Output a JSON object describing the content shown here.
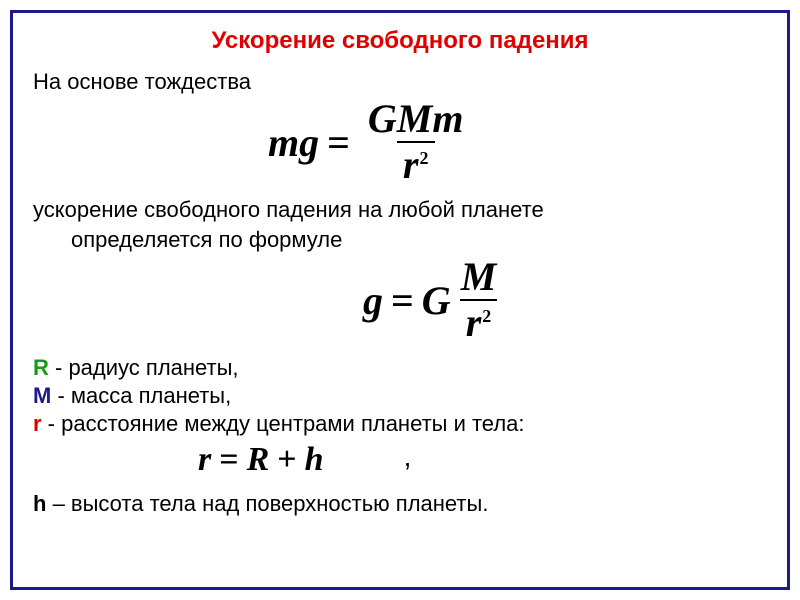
{
  "title": "Ускорение свободного падения",
  "intro_line": "На основе тождества",
  "body_line_1": "ускорение свободного падения  на любой планете",
  "body_line_2": "определяется по формуле",
  "vars": {
    "R": {
      "sym": "R",
      "desc": "  -  радиус планеты,"
    },
    "M": {
      "sym": "M",
      "desc": "  -  масса планеты,"
    },
    "r": {
      "sym": "r",
      "desc": "  -  расстояние между центрами планеты и тела:"
    },
    "h": {
      "sym": "h",
      "desc": " – высота тела над поверхностью планеты."
    }
  },
  "formulas": {
    "f1": {
      "lhs": "mg",
      "num": "GMm",
      "den_base": "r",
      "den_exp": "2"
    },
    "f2": {
      "lhs": "g",
      "coef": "G",
      "num": "M",
      "den_base": "r",
      "den_exp": "2"
    },
    "f3": {
      "lhs": "r",
      "a": "R",
      "op": "+",
      "b": "h"
    }
  },
  "style": {
    "border_color": "#1a1a8a",
    "title_color": "#e00000",
    "title_fontsize": 24,
    "body_fontsize": 22,
    "formula_fontsize": 40,
    "formula_small_fontsize": 34,
    "var_R_color": "#1a9a1a",
    "var_M_color": "#1a1a8a",
    "var_r_color": "#e00000",
    "background": "#ffffff",
    "font_family_body": "Arial, sans-serif",
    "font_family_formula": "Times New Roman, serif"
  }
}
